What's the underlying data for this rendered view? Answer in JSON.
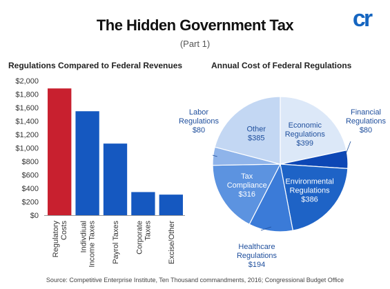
{
  "title": "The Hidden Government Tax",
  "subtitle": "(Part 1)",
  "logo": {
    "text": "cr",
    "icon": "cr-logo-icon",
    "color": "#1565C0"
  },
  "source": "Source: Competitive Enterprise Institute, Ten Thousand commandments, 2016; Congressional Budget Office",
  "chart_data": [
    {
      "type": "bar",
      "title": "Regulations Compared to Federal Revenues",
      "categories": [
        [
          "Regulatory",
          "Costs"
        ],
        [
          "Indivdiual",
          "Income Taxes"
        ],
        [
          "Payrol Taxes"
        ],
        [
          "Corporate",
          "Taxes"
        ],
        [
          "Excise/Other"
        ]
      ],
      "values": [
        1885,
        1546,
        1065,
        344,
        306
      ],
      "colors": [
        "#C8202F",
        "#1558C0",
        "#1558C0",
        "#1558C0",
        "#1558C0"
      ],
      "ylim": [
        0,
        2000
      ],
      "yticks": [
        0,
        200,
        400,
        600,
        800,
        1000,
        1200,
        1400,
        1600,
        1800,
        2000
      ],
      "ytick_labels": [
        "$0",
        "$200",
        "$400",
        "$600",
        "$800",
        "$1,000",
        "$1,200",
        "$1,400",
        "$1,600",
        "$1,800",
        "$2,000"
      ],
      "xlabel": "",
      "ylabel": "",
      "grid": false
    },
    {
      "type": "pie",
      "title": "Annual Cost of Federal Regulations",
      "slices": [
        {
          "name": [
            "Economic",
            "Regulations"
          ],
          "value": 399,
          "label": "$399",
          "color": "#DCE8F8",
          "text_color": "#1E4E9C",
          "label_place": "inside"
        },
        {
          "name": [
            "Financial",
            "Regulations"
          ],
          "value": 80,
          "label": "$80",
          "color": "#0D47B5",
          "text_color": "#1E4E9C",
          "label_place": "outside"
        },
        {
          "name": [
            "Environmental",
            "Regulations"
          ],
          "value": 386,
          "label": "$386",
          "color": "#1E63C6",
          "text_color": "#FFFFFF",
          "label_place": "inside"
        },
        {
          "name": [
            "Healthcare",
            "Regulations"
          ],
          "value": 194,
          "label": "$194",
          "color": "#3B7BD8",
          "text_color": "#1E4E9C",
          "label_place": "outside"
        },
        {
          "name": [
            "Tax",
            "Compliance"
          ],
          "value": 316,
          "label": "$316",
          "color": "#5C93E0",
          "text_color": "#FFFFFF",
          "label_place": "inside"
        },
        {
          "name": [
            "Labor",
            "Regulations"
          ],
          "value": 80,
          "label": "$80",
          "color": "#8FB4EA",
          "text_color": "#1E4E9C",
          "label_place": "outside"
        },
        {
          "name": [
            "Other"
          ],
          "value": 385,
          "label": "$385",
          "color": "#C3D7F3",
          "text_color": "#1E4E9C",
          "label_place": "inside"
        }
      ],
      "start_angle_deg": 0,
      "direction": "clockwise"
    }
  ]
}
